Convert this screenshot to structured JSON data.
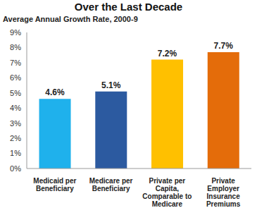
{
  "chart_data": {
    "type": "bar",
    "title": "Over the Last Decade",
    "subtitle": "Average Annual Growth Rate, 2000-9",
    "categories": [
      "Medicaid per Beneficiary",
      "Medicare per Beneficiary",
      "Private per Capita, Comparable to Medicare",
      "Private Employer Insurance Premiums"
    ],
    "values": [
      4.6,
      5.1,
      7.2,
      7.7
    ],
    "value_labels": [
      "4.6%",
      "5.1%",
      "7.2%",
      "7.7%"
    ],
    "colors": [
      "#1fb1ec",
      "#2c5aa0",
      "#ffc000",
      "#e46c0a"
    ],
    "ylim": [
      0,
      9
    ],
    "yticks": [
      {
        "value": 0,
        "label": "0%"
      },
      {
        "value": 1,
        "label": "1%"
      },
      {
        "value": 2,
        "label": "2%"
      },
      {
        "value": 3,
        "label": "3%"
      },
      {
        "value": 4,
        "label": "4%"
      },
      {
        "value": 5,
        "label": "5%"
      },
      {
        "value": 6,
        "label": "6%"
      },
      {
        "value": 7,
        "label": "7%"
      },
      {
        "value": 8,
        "label": "8%"
      },
      {
        "value": 9,
        "label": "9%"
      }
    ],
    "grid": false,
    "data_labels": true
  }
}
